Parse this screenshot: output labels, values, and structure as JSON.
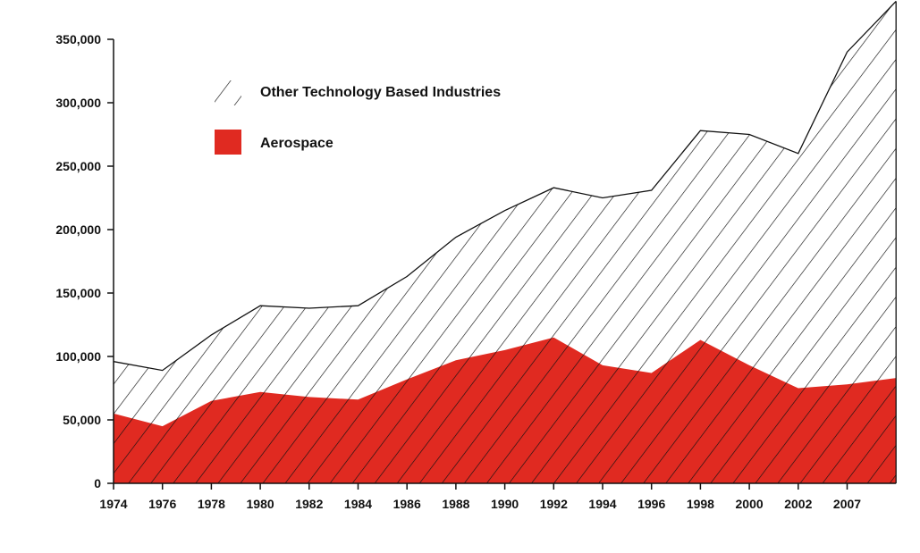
{
  "chart_data": {
    "type": "area",
    "stacked": true,
    "title": "",
    "xlabel": "",
    "ylabel": "",
    "categories": [
      "1974",
      "1976",
      "1978",
      "1980",
      "1982",
      "1984",
      "1986",
      "1988",
      "1990",
      "1992",
      "1994",
      "1996",
      "1998",
      "2000",
      "2002",
      "2007"
    ],
    "y_tick_labels": [
      "0",
      "50,000",
      "100,000",
      "150,000",
      "200,000",
      "250,000",
      "300,000",
      "350,000"
    ],
    "y_tick_values": [
      0,
      50000,
      100000,
      150000,
      200000,
      250000,
      300000,
      350000
    ],
    "ylim": [
      0,
      380000
    ],
    "points": [
      {
        "x": "1974",
        "aerospace": 55000,
        "total": 96000
      },
      {
        "x": "1976",
        "aerospace": 45000,
        "total": 89000
      },
      {
        "x": "1978",
        "aerospace": 65000,
        "total": 117000
      },
      {
        "x": "1980",
        "aerospace": 72000,
        "total": 140000
      },
      {
        "x": "1982",
        "aerospace": 68000,
        "total": 138000
      },
      {
        "x": "1984",
        "aerospace": 66000,
        "total": 140000
      },
      {
        "x": "1986",
        "aerospace": 82000,
        "total": 163000
      },
      {
        "x": "1988",
        "aerospace": 97000,
        "total": 194000
      },
      {
        "x": "1990",
        "aerospace": 105000,
        "total": 215000
      },
      {
        "x": "1992",
        "aerospace": 115000,
        "total": 233000
      },
      {
        "x": "1994",
        "aerospace": 93000,
        "total": 225000
      },
      {
        "x": "1996",
        "aerospace": 87000,
        "total": 231000
      },
      {
        "x": "1998",
        "aerospace": 113000,
        "total": 278000
      },
      {
        "x": "2000",
        "aerospace": 93000,
        "total": 275000
      },
      {
        "x": "2002",
        "aerospace": 75000,
        "total": 260000
      },
      {
        "x": "2007",
        "aerospace": 78000,
        "total": 340000
      },
      {
        "x": "",
        "aerospace": 83000,
        "total": 380000
      }
    ],
    "series": [
      {
        "name": "Other Technology Based Industries",
        "pattern": "diagonal-hatch",
        "color": "#111111"
      },
      {
        "name": "Aerospace",
        "pattern": "solid",
        "color": "#e02a21"
      }
    ],
    "grid": false,
    "legend_position": "top-left"
  }
}
